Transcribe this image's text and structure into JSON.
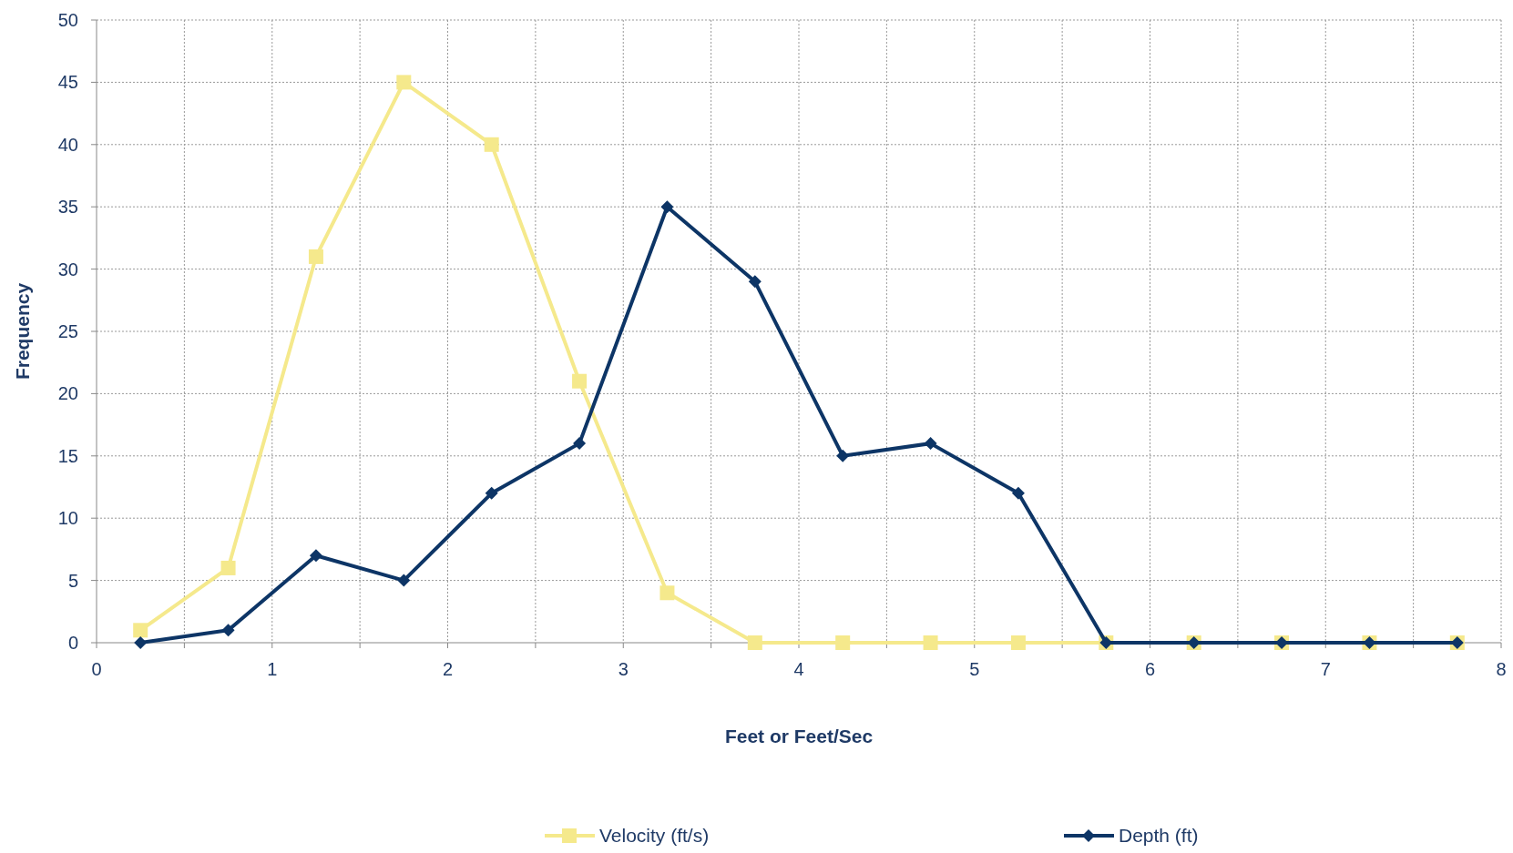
{
  "chart_data": {
    "type": "line",
    "xlabel": "Feet or Feet/Sec",
    "ylabel": "Frequency",
    "x": [
      0.25,
      0.75,
      1.25,
      1.75,
      2.25,
      2.75,
      3.25,
      3.75,
      4.25,
      4.75,
      5.25,
      5.75,
      6.25,
      6.75,
      7.25,
      7.75
    ],
    "series": [
      {
        "name": "Velocity (ft/s)",
        "color": "#f5e98c",
        "marker": "square",
        "values": [
          1,
          6,
          31,
          45,
          40,
          21,
          4,
          0,
          0,
          0,
          0,
          0,
          0,
          0,
          0,
          0
        ]
      },
      {
        "name": "Depth (ft)",
        "color": "#0d3566",
        "marker": "diamond",
        "values": [
          0,
          1,
          7,
          5,
          12,
          16,
          35,
          29,
          15,
          16,
          12,
          0,
          0,
          0,
          0,
          0
        ]
      }
    ],
    "xlim": [
      0,
      8
    ],
    "xticks": [
      0,
      {
        "value": 0.5,
        "label": null
      },
      1,
      {
        "value": 1.5,
        "label": null
      },
      2,
      {
        "value": 2.5,
        "label": null
      },
      3,
      {
        "value": 3.5,
        "label": null
      },
      4,
      {
        "value": 4.5,
        "label": null
      },
      5,
      {
        "value": 5.5,
        "label": null
      },
      6,
      {
        "value": 6.5,
        "label": null
      },
      7,
      {
        "value": 7.5,
        "label": null
      },
      8
    ],
    "ylim": [
      0,
      50
    ],
    "yticks": [
      0,
      5,
      10,
      15,
      20,
      25,
      30,
      35,
      40,
      45,
      50
    ],
    "grid": true,
    "legend": "bottom",
    "line_style": "solid"
  }
}
